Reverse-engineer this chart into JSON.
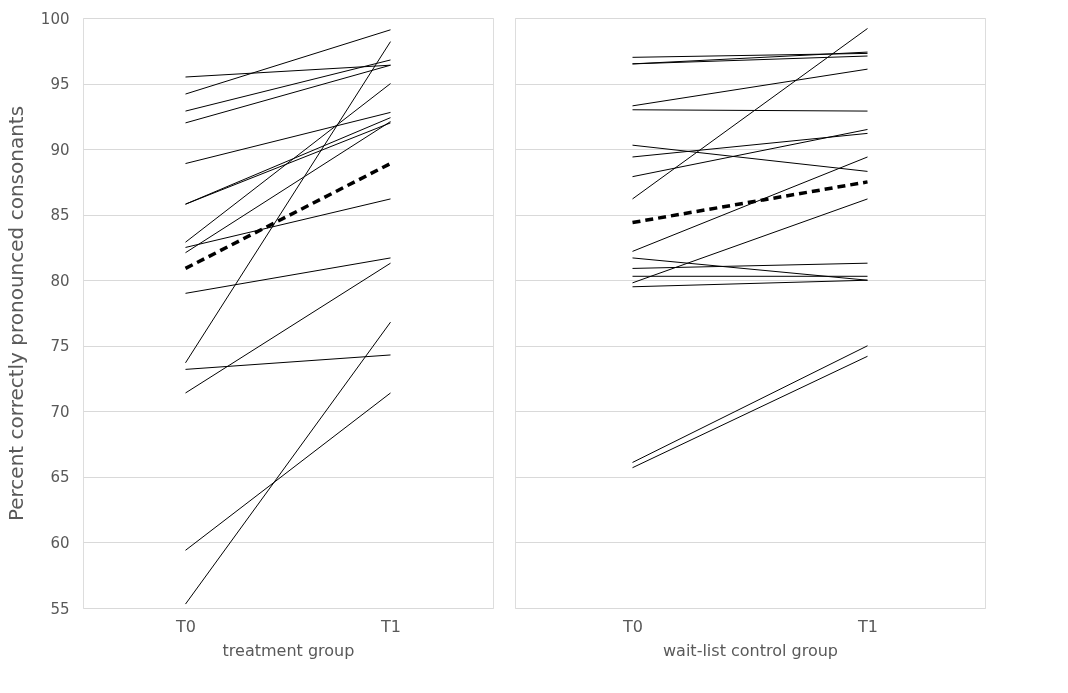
{
  "chart_data": [
    {
      "type": "line",
      "categories": [
        "T0",
        "T1"
      ],
      "xlabel": "treatment group",
      "ylabel": "Percent correctly pronounced consonants",
      "ylim": [
        55,
        100
      ],
      "yticks": [
        55,
        60,
        65,
        70,
        75,
        80,
        85,
        90,
        95,
        100
      ],
      "grid": "y",
      "series": [
        {
          "color": "#000000",
          "values": [
            95.5,
            96.4
          ]
        },
        {
          "color": "#000000",
          "values": [
            94.2,
            99.1
          ]
        },
        {
          "color": "#000000",
          "values": [
            92.9,
            96.8
          ]
        },
        {
          "color": "#000000",
          "values": [
            92.0,
            96.4
          ]
        },
        {
          "color": "#000000",
          "values": [
            88.9,
            92.8
          ]
        },
        {
          "color": "#000000",
          "values": [
            85.8,
            92.0
          ]
        },
        {
          "color": "#000000",
          "values": [
            85.8,
            92.4
          ]
        },
        {
          "color": "#000000",
          "values": [
            82.9,
            95.0
          ]
        },
        {
          "color": "#000000",
          "values": [
            82.5,
            86.2
          ]
        },
        {
          "color": "#000000",
          "values": [
            82.1,
            92.1
          ]
        },
        {
          "color": "#000000",
          "values": [
            79.0,
            81.7
          ]
        },
        {
          "color": "#000000",
          "values": [
            73.7,
            98.2
          ]
        },
        {
          "color": "#000000",
          "values": [
            73.2,
            74.3
          ]
        },
        {
          "color": "#000000",
          "values": [
            71.4,
            81.3
          ]
        },
        {
          "color": "#000000",
          "values": [
            59.4,
            71.4
          ]
        },
        {
          "color": "#000000",
          "values": [
            55.3,
            76.8
          ]
        },
        {
          "color": "#000000",
          "values": [
            80.9,
            88.9
          ],
          "line_style": "dashed"
        }
      ]
    },
    {
      "type": "line",
      "categories": [
        "T0",
        "T1"
      ],
      "xlabel": "wait-list control group",
      "ylim": [
        55,
        100
      ],
      "yticks": [
        55,
        60,
        65,
        70,
        75,
        80,
        85,
        90,
        95,
        100
      ],
      "grid": "y",
      "tick_labels": "x",
      "series": [
        {
          "color": "#000000",
          "values": [
            97.0,
            97.3
          ]
        },
        {
          "color": "#000000",
          "values": [
            96.5,
            97.4
          ]
        },
        {
          "color": "#000000",
          "values": [
            96.5,
            97.1
          ]
        },
        {
          "color": "#000000",
          "values": [
            86.2,
            99.2
          ]
        },
        {
          "color": "#000000",
          "values": [
            93.3,
            96.1
          ]
        },
        {
          "color": "#000000",
          "values": [
            93.0,
            92.9
          ]
        },
        {
          "color": "#000000",
          "values": [
            90.3,
            88.3
          ]
        },
        {
          "color": "#000000",
          "values": [
            89.4,
            91.2
          ]
        },
        {
          "color": "#000000",
          "values": [
            87.9,
            91.5
          ]
        },
        {
          "color": "#000000",
          "values": [
            82.2,
            89.4
          ]
        },
        {
          "color": "#000000",
          "values": [
            81.7,
            80.0
          ]
        },
        {
          "color": "#000000",
          "values": [
            80.9,
            81.3
          ]
        },
        {
          "color": "#000000",
          "values": [
            80.3,
            80.3
          ]
        },
        {
          "color": "#000000",
          "values": [
            79.8,
            86.2
          ]
        },
        {
          "color": "#000000",
          "values": [
            79.5,
            80.0
          ]
        },
        {
          "color": "#000000",
          "values": [
            66.1,
            75.0
          ]
        },
        {
          "color": "#000000",
          "values": [
            65.7,
            74.2
          ]
        },
        {
          "color": "#000000",
          "values": [
            84.4,
            87.5
          ],
          "line_style": "dashed"
        }
      ]
    }
  ]
}
